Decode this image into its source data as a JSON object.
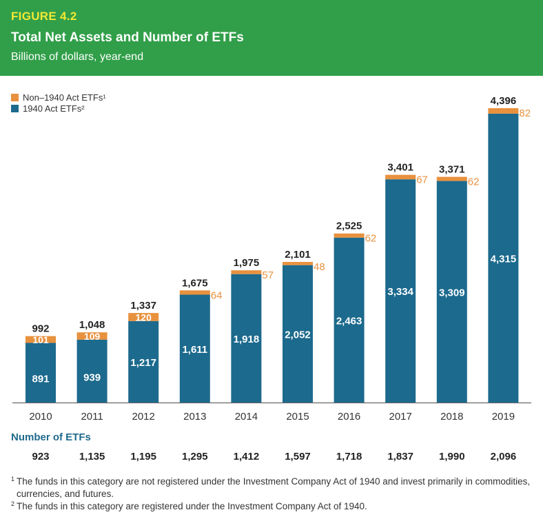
{
  "header": {
    "figure_label": "FIGURE 4.2",
    "title": "Total Net Assets and Number of ETFs",
    "subtitle": "Billions of dollars, year-end"
  },
  "colors": {
    "header_bg": "#319f49",
    "figure_label": "#f3e934",
    "non_1940": "#e8913e",
    "act_1940": "#1c6a8d",
    "heading_blue": "#1f6a8c"
  },
  "legend": {
    "items": [
      {
        "label": "Non–1940 Act ETFs¹",
        "color": "#e8913e"
      },
      {
        "label": "1940 Act ETFs²",
        "color": "#1c6a8d"
      }
    ]
  },
  "chart_data": {
    "type": "bar",
    "stacked": true,
    "title": "Total Net Assets and Number of ETFs",
    "subtitle": "Billions of dollars, year-end",
    "xlabel": "",
    "ylabel": "",
    "categories": [
      "2010",
      "2011",
      "2012",
      "2013",
      "2014",
      "2015",
      "2016",
      "2017",
      "2018",
      "2019"
    ],
    "series": [
      {
        "name": "1940 Act ETFs",
        "values": [
          891,
          939,
          1217,
          1611,
          1918,
          2052,
          2463,
          3334,
          3309,
          4315
        ],
        "labels": [
          "891",
          "939",
          "1,217",
          "1,611",
          "1,918",
          "2,052",
          "2,463",
          "3,334",
          "3,309",
          "4,315"
        ]
      },
      {
        "name": "Non–1940 Act ETFs",
        "values": [
          101,
          109,
          120,
          64,
          57,
          48,
          62,
          67,
          62,
          82
        ],
        "labels": [
          "101",
          "109",
          "120",
          "64",
          "57",
          "48",
          "62",
          "67",
          "62",
          "82"
        ]
      }
    ],
    "totals": [
      992,
      1048,
      1337,
      1675,
      1975,
      2101,
      2525,
      3401,
      3371,
      4396
    ],
    "total_labels": [
      "992",
      "1,048",
      "1,337",
      "1,675",
      "1,975",
      "2,101",
      "2,525",
      "3,401",
      "3,371",
      "4,396"
    ],
    "ylim": [
      0,
      4396
    ],
    "grid": false,
    "legend_position": "top-left"
  },
  "etf_counts": {
    "heading": "Number of ETFs",
    "values": [
      "923",
      "1,135",
      "1,195",
      "1,295",
      "1,412",
      "1,597",
      "1,718",
      "1,837",
      "1,990",
      "2,096"
    ]
  },
  "footnotes": [
    {
      "mark": "1",
      "text": "The funds in this category are not registered under the Investment Company Act of 1940 and invest primarily in commodities, currencies, and futures."
    },
    {
      "mark": "2",
      "text": "The funds in this category are registered under the Investment Company Act of 1940."
    }
  ]
}
